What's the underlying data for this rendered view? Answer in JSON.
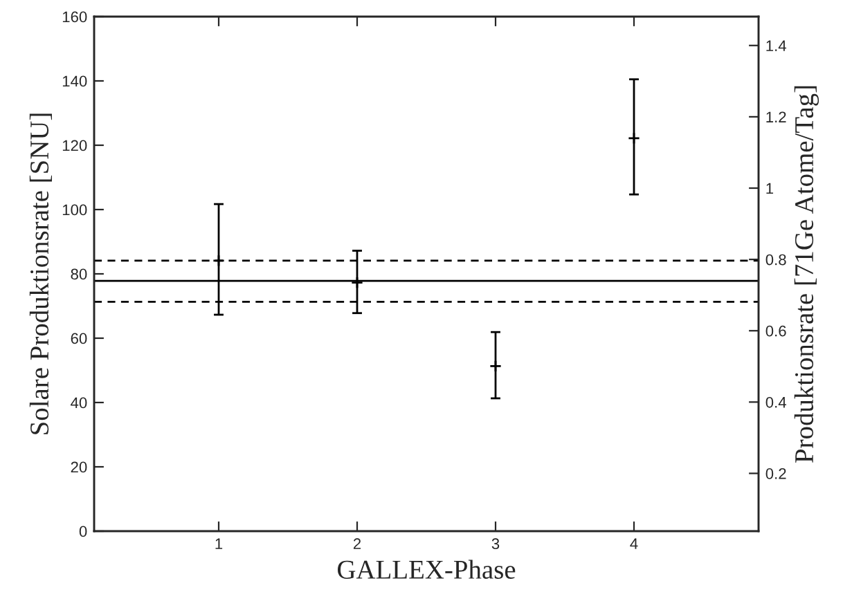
{
  "chart_data": {
    "type": "scatter",
    "xlabel": "GALLEX-Phase",
    "ylabel": "Solare Produktionsrate [SNU]",
    "y2label": "Produktionsrate [71Ge Atome/Tag]",
    "x": [
      1,
      2,
      3,
      4
    ],
    "series": [
      {
        "color": "#000000",
        "values": [
          84.1,
          77.3,
          51.3,
          122.2
        ],
        "errors": [
          [
            67.3,
            101.7
          ],
          [
            67.8,
            87.2
          ],
          [
            41.3,
            61.9
          ],
          [
            104.7,
            140.5
          ]
        ]
      }
    ],
    "marker": "cross",
    "xlim": [
      0.1,
      4.9
    ],
    "xticks": [
      1,
      2,
      3,
      4
    ],
    "ylim": [
      0,
      160
    ],
    "yticks": [
      0,
      20,
      40,
      60,
      80,
      100,
      120,
      140,
      160
    ],
    "y2lim": [
      0.038,
      1.481
    ],
    "y2ticks": [
      0.2,
      0.4,
      0.6,
      0.8,
      1,
      1.2,
      1.4
    ],
    "ref_lines": [
      {
        "axis": "y",
        "value": 84.1,
        "color": "#000000",
        "line_style": "dashed"
      },
      {
        "axis": "y",
        "value": 77.8,
        "color": "#000000",
        "line_style": "solid"
      },
      {
        "axis": "y",
        "value": 71.3,
        "color": "#000000",
        "line_style": "dashed"
      }
    ],
    "grid": false,
    "legend": false
  }
}
